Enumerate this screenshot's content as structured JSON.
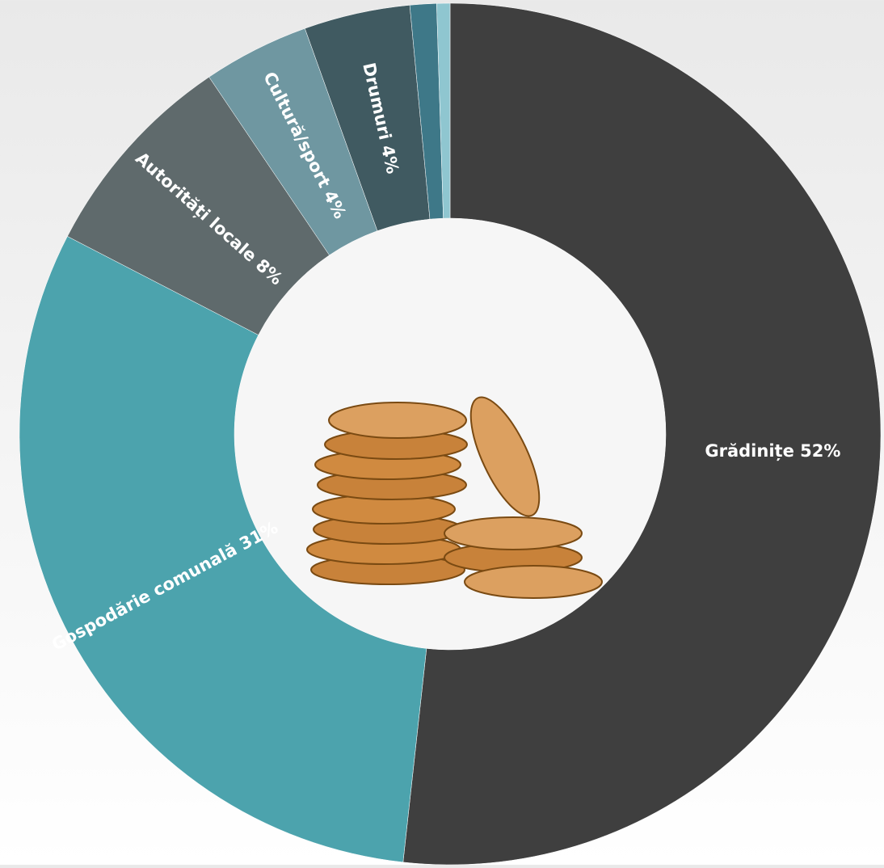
{
  "chart_data": {
    "type": "donut",
    "categories": [
      "Grădinițe",
      "Gospodărie comunală",
      "Autorități locale",
      "Cultură/sport",
      "Drumuri",
      null,
      null
    ],
    "values": [
      52,
      31,
      8,
      4,
      4,
      1,
      0.5
    ],
    "value_labels": [
      "52%",
      "31%",
      "8%",
      "4%",
      "4%",
      null,
      null
    ],
    "colors": [
      "#3f3f3f",
      "#4ca3ad",
      "#5f6a6c",
      "#6f97a1",
      "#405a61",
      "#3e7888",
      "#8fc6d0"
    ]
  }
}
